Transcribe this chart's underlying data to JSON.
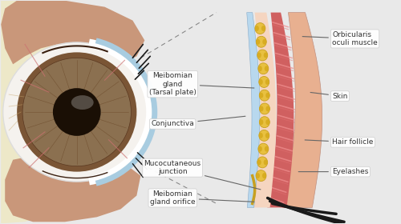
{
  "bg_color": "#e9e9e9",
  "fig_width": 5.0,
  "fig_height": 2.8,
  "dpi": 100,
  "labels": {
    "meibomian_gland": "Meibomian\ngland\n(Tarsal plate)",
    "conjunctiva": "Conjunctiva",
    "orbicularis": "Orbicularis\noculi muscle",
    "skin": "Skin",
    "hair_follicle": "Hair follicle",
    "eyelashes": "Eyelashes",
    "mucocutaneous": "Mucocutaneous\njunction",
    "meibomian_orifice": "Meibomian\ngland orifice"
  },
  "colors": {
    "orbit_fat": "#ede8c8",
    "lid_skin": "#c9977a",
    "lid_pink": "#e8b090",
    "sclera": "#f5f2ee",
    "iris": "#8b7050",
    "pupil": "#1a0f05",
    "cornea_blue": "#a8cce0",
    "blood_vessel": "#cc7070",
    "eyelid_skin_outer": "#e8b090",
    "eyelid_muscle": "#d06060",
    "eyelid_skin_inner": "#f0c8b0",
    "conjunctiva_color": "#b8d8ee",
    "meibomian_yellow": "#e8c040",
    "meibomian_dark": "#c8a020",
    "eyelash_color": "#1a1a1a",
    "text_color": "#333333",
    "arrow_color": "#666666",
    "dashed_color": "#888888",
    "white": "#ffffff",
    "label_bg": "#ffffff",
    "label_edge": "#cccccc"
  }
}
